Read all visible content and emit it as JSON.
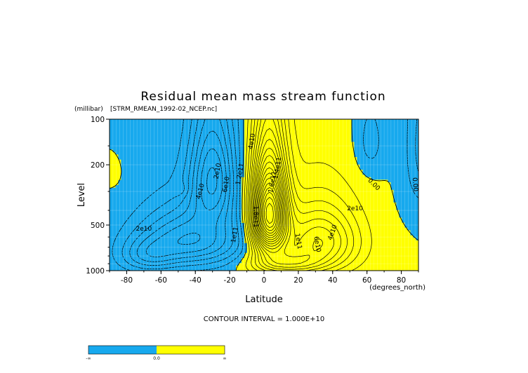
{
  "chart_data": {
    "type": "contour",
    "title": "Residual mean mass stream function",
    "subtitle": "[STRM_RMEAN_1992-02_NCEP.nc]",
    "ylabel_units": "(millibar)",
    "ylabel": "Level",
    "xlabel": "Latitude",
    "xlabel_units": "(degrees_north)",
    "x_ticks": [
      "-80",
      "-60",
      "-40",
      "-20",
      "0",
      "20",
      "40",
      "60",
      "80"
    ],
    "x_tick_values": [
      -80,
      -60,
      -40,
      -20,
      0,
      20,
      40,
      60,
      80
    ],
    "y_ticks": [
      "100",
      "200",
      "500",
      "1000"
    ],
    "y_tick_values": [
      100,
      200,
      500,
      1000
    ],
    "xlim": [
      -90,
      90
    ],
    "ylim": [
      100,
      1000
    ],
    "y_scale": "log",
    "y_inverted": true,
    "grid": true,
    "footer": "CONTOUR INTERVAL = 1.000E+10",
    "colors": {
      "negative": "#17a9ee",
      "positive": "#ffff00",
      "line": "#000000",
      "grid": "#d8d8d8"
    },
    "colorbar": {
      "labels": [
        "-∞",
        "0.0",
        "∞"
      ],
      "colors": [
        "#17a9ee",
        "#ffff00"
      ]
    },
    "contour_labels": [
      {
        "text": "4e10",
        "lat": -7,
        "p": 140,
        "rot": -80
      },
      {
        "text": "1.2e11",
        "lat": -14,
        "p": 230,
        "rot": -80
      },
      {
        "text": "1.6e11",
        "lat": 5,
        "p": 260,
        "rot": -80
      },
      {
        "text": "1.8e11",
        "lat": -5,
        "p": 440,
        "rot": 90
      },
      {
        "text": "1.4e11",
        "lat": 8,
        "p": 210,
        "rot": -80
      },
      {
        "text": "1e11",
        "lat": 20,
        "p": 640,
        "rot": 80
      },
      {
        "text": "6e10",
        "lat": 31,
        "p": 670,
        "rot": 80
      },
      {
        "text": "4e10",
        "lat": 40,
        "p": 560,
        "rot": -70
      },
      {
        "text": "2e10",
        "lat": 53,
        "p": 390,
        "rot": 0
      },
      {
        "text": "0.00",
        "lat": 64,
        "p": 270,
        "rot": 45
      },
      {
        "text": "0.00",
        "lat": 88,
        "p": 270,
        "rot": 85
      },
      {
        "text": "4e10",
        "lat": -37,
        "p": 300,
        "rot": -75
      },
      {
        "text": "2e10",
        "lat": -70,
        "p": 530,
        "rot": 0
      },
      {
        "text": "1e11",
        "lat": -17,
        "p": 580,
        "rot": -80
      },
      {
        "text": "2e10",
        "lat": -27,
        "p": 220,
        "rot": -80
      },
      {
        "text": "6e10",
        "lat": -22,
        "p": 270,
        "rot": -80
      }
    ]
  }
}
